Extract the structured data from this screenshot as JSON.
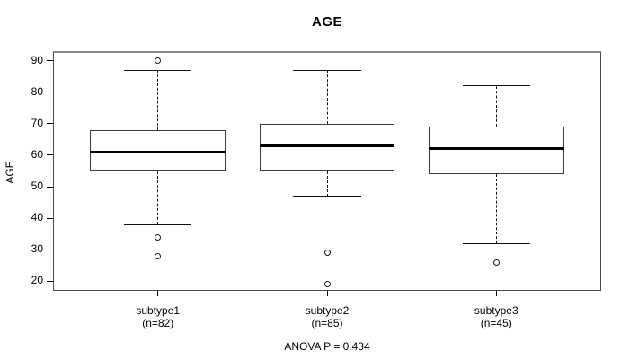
{
  "chart_data": {
    "type": "boxplot",
    "title": "AGE",
    "ylabel": "AGE",
    "annotation": "ANOVA P = 0.434",
    "yticks": [
      20,
      30,
      40,
      50,
      60,
      70,
      80,
      90
    ],
    "ylim": [
      16.9,
      93.1
    ],
    "xlim": [
      0.38,
      3.62
    ],
    "box_width": 0.8,
    "cap_width": 0.4,
    "grid": false,
    "colors": {
      "line": "#111111",
      "median": "#000000",
      "background": "#ffffff",
      "plot_border": "#4a4a4a"
    },
    "groups": [
      {
        "label": "subtype1",
        "sublabel": "(n=82)",
        "position": 1,
        "whisker_low": 38,
        "q1": 55,
        "median": 61,
        "q3": 68,
        "whisker_high": 87,
        "outliers": [
          90,
          34,
          28
        ]
      },
      {
        "label": "subtype2",
        "sublabel": "(n=85)",
        "position": 2,
        "whisker_low": 47,
        "q1": 55,
        "median": 63,
        "q3": 70,
        "whisker_high": 87,
        "outliers": [
          29,
          19
        ]
      },
      {
        "label": "subtype3",
        "sublabel": "(n=45)",
        "position": 3,
        "whisker_low": 32,
        "q1": 54,
        "median": 62,
        "q3": 69,
        "whisker_high": 82,
        "outliers": [
          26
        ]
      }
    ]
  }
}
